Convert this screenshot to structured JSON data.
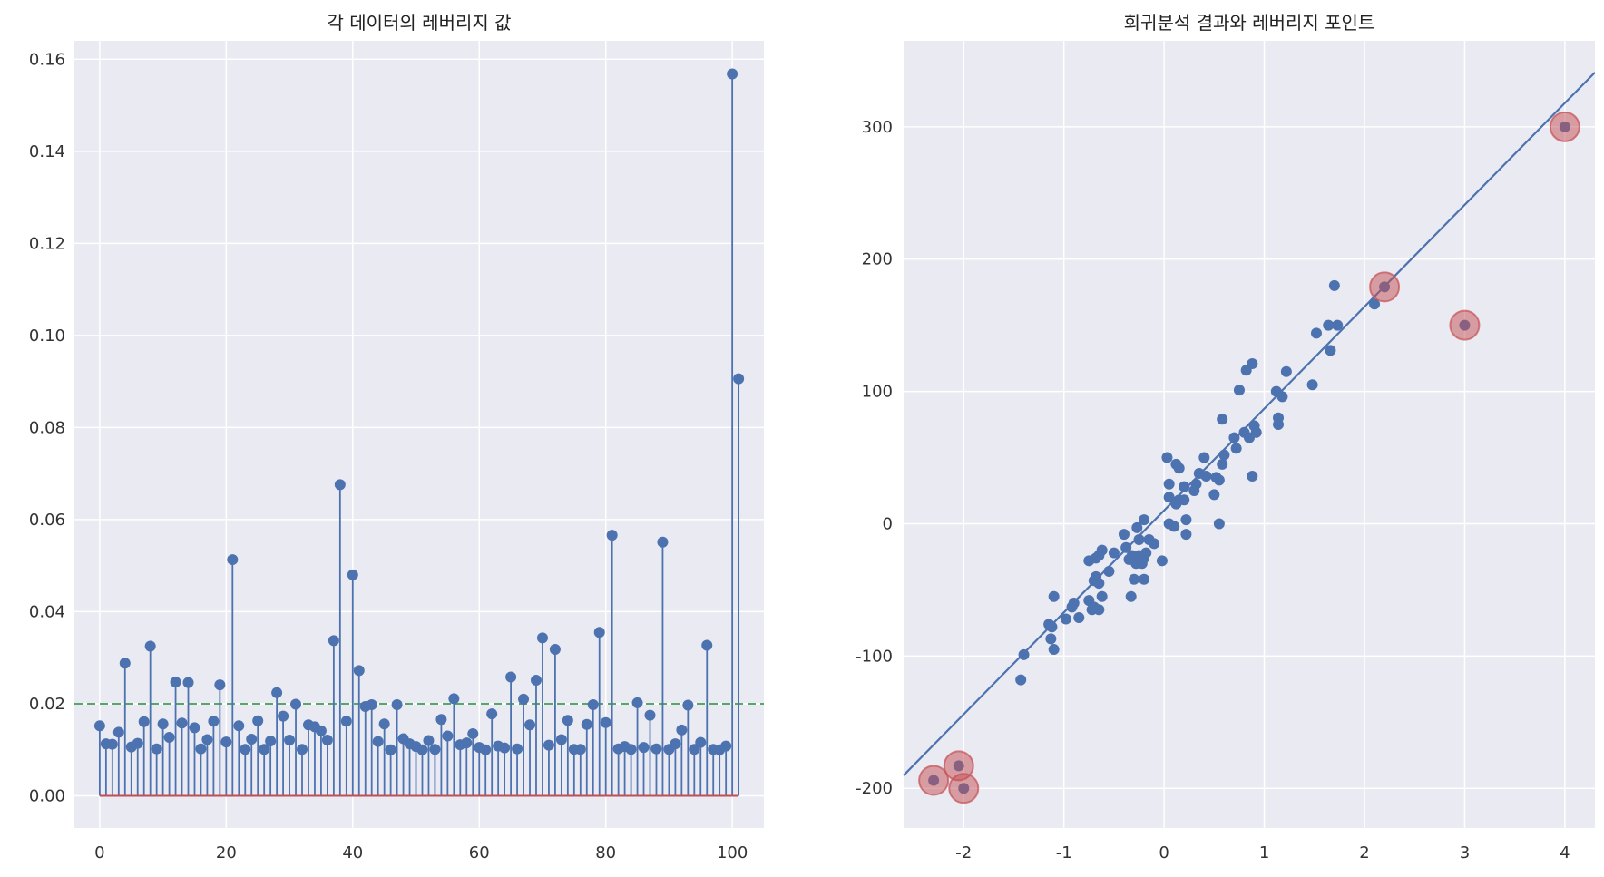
{
  "colors": {
    "panel_bg": "#eaeaf2",
    "grid": "#ffffff",
    "stem": "#4c72b0",
    "baseline": "#c44e52",
    "threshold": "#55a868",
    "marker": "#4c72b0",
    "highlight": "#c44e52"
  },
  "chart_data": [
    {
      "type": "stem",
      "title": "각 데이터의 레버리지 값",
      "xlabel": "",
      "ylabel": "",
      "xlim": [
        -4,
        105
      ],
      "ylim": [
        -0.007,
        0.164
      ],
      "xticks": [
        0,
        20,
        40,
        60,
        80,
        100
      ],
      "xtick_labels": [
        "0",
        "20",
        "40",
        "60",
        "80",
        "100"
      ],
      "yticks": [
        0.0,
        0.02,
        0.04,
        0.06,
        0.08,
        0.1,
        0.12,
        0.14,
        0.16
      ],
      "ytick_labels": [
        "0.00",
        "0.02",
        "0.04",
        "0.06",
        "0.08",
        "0.10",
        "0.12",
        "0.14",
        "0.16"
      ],
      "grid": true,
      "threshold_line": {
        "y": 0.02,
        "style": "dashed"
      },
      "baseline_y": 0,
      "x": [
        0,
        1,
        2,
        3,
        4,
        5,
        6,
        7,
        8,
        9,
        10,
        11,
        12,
        13,
        14,
        15,
        16,
        17,
        18,
        19,
        20,
        21,
        22,
        23,
        24,
        25,
        26,
        27,
        28,
        29,
        30,
        31,
        32,
        33,
        34,
        35,
        36,
        37,
        38,
        39,
        40,
        41,
        42,
        43,
        44,
        45,
        46,
        47,
        48,
        49,
        50,
        51,
        52,
        53,
        54,
        55,
        56,
        57,
        58,
        59,
        60,
        61,
        62,
        63,
        64,
        65,
        66,
        67,
        68,
        69,
        70,
        71,
        72,
        73,
        74,
        75,
        76,
        77,
        78,
        79,
        80,
        81,
        82,
        83,
        84,
        85,
        86,
        87,
        88,
        89,
        90,
        91,
        92,
        93,
        94,
        95,
        96,
        97,
        98,
        99,
        100,
        101
      ],
      "values": [
        0.0152,
        0.0113,
        0.0112,
        0.0138,
        0.0288,
        0.0106,
        0.0114,
        0.0161,
        0.0325,
        0.0102,
        0.0156,
        0.0127,
        0.0247,
        0.0158,
        0.0246,
        0.0148,
        0.0102,
        0.0122,
        0.0162,
        0.0241,
        0.0117,
        0.0513,
        0.0152,
        0.0101,
        0.0123,
        0.0163,
        0.0101,
        0.0119,
        0.0224,
        0.0173,
        0.0121,
        0.0199,
        0.0101,
        0.0154,
        0.015,
        0.0141,
        0.0121,
        0.0337,
        0.0676,
        0.0162,
        0.048,
        0.0272,
        0.0194,
        0.0198,
        0.0118,
        0.0156,
        0.01,
        0.0198,
        0.0124,
        0.0113,
        0.0107,
        0.01,
        0.012,
        0.0101,
        0.0166,
        0.013,
        0.0211,
        0.0111,
        0.0115,
        0.0135,
        0.0105,
        0.01,
        0.0178,
        0.0108,
        0.0104,
        0.0258,
        0.0102,
        0.021,
        0.0154,
        0.0251,
        0.0343,
        0.011,
        0.0318,
        0.0122,
        0.0164,
        0.0101,
        0.0101,
        0.0155,
        0.0198,
        0.0355,
        0.0159,
        0.0566,
        0.0102,
        0.0107,
        0.0101,
        0.0202,
        0.0105,
        0.0175,
        0.0102,
        0.0551,
        0.0101,
        0.0113,
        0.0143,
        0.0197,
        0.0101,
        0.0116,
        0.0327,
        0.0101,
        0.01,
        0.0108,
        0.1568,
        0.0906
      ]
    },
    {
      "type": "scatter",
      "title": "회귀분석 결과와 레버리지 포인트",
      "xlabel": "",
      "ylabel": "",
      "xlim": [
        -2.6,
        4.3
      ],
      "ylim": [
        -230,
        365
      ],
      "xticks": [
        -2,
        -1,
        0,
        1,
        2,
        3,
        4
      ],
      "xtick_labels": [
        "-2",
        "-1",
        "0",
        "1",
        "2",
        "3",
        "4"
      ],
      "yticks": [
        -200,
        -100,
        0,
        100,
        200,
        300
      ],
      "ytick_labels": [
        "-200",
        "-100",
        "0",
        "100",
        "200",
        "300"
      ],
      "grid": true,
      "regression_line": {
        "intercept": 10.0,
        "slope": 77.0
      },
      "points": [
        [
          -1.4,
          -99
        ],
        [
          -1.43,
          -118
        ],
        [
          -1.1,
          -55
        ],
        [
          -1.13,
          -87
        ],
        [
          -1.1,
          -95
        ],
        [
          -1.15,
          -76
        ],
        [
          -1.12,
          -78
        ],
        [
          -0.98,
          -72
        ],
        [
          -0.9,
          -60
        ],
        [
          -0.92,
          -63
        ],
        [
          -0.85,
          -71
        ],
        [
          -0.75,
          -58
        ],
        [
          -0.72,
          -65
        ],
        [
          -0.7,
          -63
        ],
        [
          -0.65,
          -65
        ],
        [
          -0.62,
          -55
        ],
        [
          -0.7,
          -43
        ],
        [
          -0.68,
          -40
        ],
        [
          -0.65,
          -45
        ],
        [
          -0.55,
          -36
        ],
        [
          -0.75,
          -28
        ],
        [
          -0.68,
          -26
        ],
        [
          -0.65,
          -24
        ],
        [
          -0.62,
          -20
        ],
        [
          -0.5,
          -22
        ],
        [
          -0.4,
          -8
        ],
        [
          -0.38,
          -18
        ],
        [
          -0.35,
          -27
        ],
        [
          -0.33,
          -55
        ],
        [
          -0.3,
          -42
        ],
        [
          -0.2,
          -42
        ],
        [
          -0.32,
          -24
        ],
        [
          -0.28,
          -30
        ],
        [
          -0.25,
          -24
        ],
        [
          -0.22,
          -30
        ],
        [
          -0.2,
          -26
        ],
        [
          -0.18,
          -22
        ],
        [
          -0.15,
          -12
        ],
        [
          -0.1,
          -15
        ],
        [
          -0.25,
          -12
        ],
        [
          -0.27,
          -3
        ],
        [
          -0.2,
          3
        ],
        [
          -0.02,
          -28
        ],
        [
          0.05,
          0
        ],
        [
          0.1,
          -2
        ],
        [
          0.22,
          -8
        ],
        [
          0.22,
          3
        ],
        [
          0.05,
          20
        ],
        [
          0.12,
          15
        ],
        [
          0.15,
          18
        ],
        [
          0.2,
          18
        ],
        [
          0.05,
          30
        ],
        [
          0.12,
          45
        ],
        [
          0.15,
          42
        ],
        [
          0.2,
          28
        ],
        [
          0.03,
          50
        ],
        [
          0.3,
          25
        ],
        [
          0.32,
          30
        ],
        [
          0.35,
          38
        ],
        [
          0.4,
          50
        ],
        [
          0.42,
          36
        ],
        [
          0.5,
          22
        ],
        [
          0.52,
          35
        ],
        [
          0.55,
          33
        ],
        [
          0.58,
          45
        ],
        [
          0.6,
          52
        ],
        [
          0.7,
          65
        ],
        [
          0.72,
          57
        ],
        [
          0.75,
          101
        ],
        [
          0.82,
          116
        ],
        [
          0.88,
          121
        ],
        [
          0.8,
          69
        ],
        [
          0.85,
          65
        ],
        [
          0.9,
          74
        ],
        [
          0.92,
          69
        ],
        [
          0.55,
          0
        ],
        [
          0.58,
          79
        ],
        [
          0.88,
          36
        ],
        [
          1.12,
          100
        ],
        [
          1.14,
          75
        ],
        [
          1.14,
          80
        ],
        [
          1.18,
          96
        ],
        [
          1.22,
          115
        ],
        [
          1.48,
          105
        ],
        [
          1.52,
          144
        ],
        [
          1.64,
          150
        ],
        [
          1.66,
          131
        ],
        [
          1.7,
          180
        ],
        [
          1.73,
          150
        ],
        [
          2.1,
          166
        ]
      ],
      "highlighted_points": [
        [
          -2.05,
          -183
        ],
        [
          -2.3,
          -194
        ],
        [
          -2.0,
          -200
        ],
        [
          2.2,
          179
        ],
        [
          3.0,
          150
        ],
        [
          4.0,
          300
        ]
      ]
    }
  ]
}
